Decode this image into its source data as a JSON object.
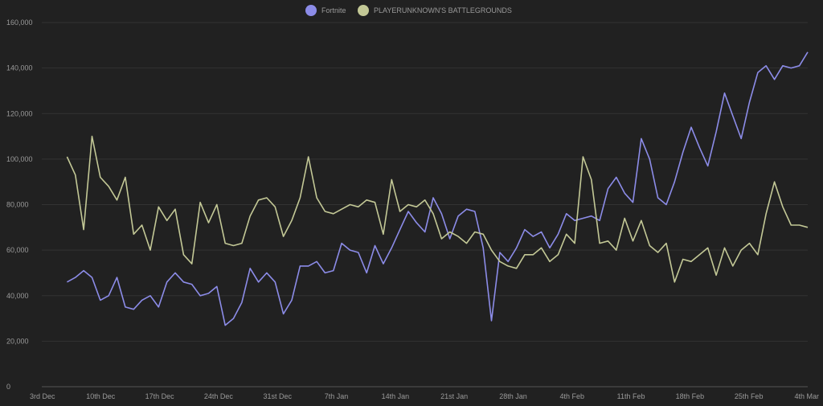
{
  "chart_data": {
    "type": "line",
    "title": "",
    "xlabel": "",
    "ylabel": "",
    "ylim": [
      0,
      160000
    ],
    "y_ticks": [
      0,
      20000,
      40000,
      60000,
      80000,
      100000,
      120000,
      140000,
      160000
    ],
    "y_tick_labels": [
      "0",
      "20,000",
      "40,000",
      "60,000",
      "80,000",
      "100,000",
      "120,000",
      "140,000",
      "160,000"
    ],
    "x_tick_labels": [
      "3rd Dec",
      "10th Dec",
      "17th Dec",
      "24th Dec",
      "31st Dec",
      "7th Jan",
      "14th Jan",
      "21st Jan",
      "28th Jan",
      "4th Feb",
      "11th Feb",
      "18th Feb",
      "25th Feb",
      "4th Mar"
    ],
    "x_range_days": [
      0,
      91
    ],
    "x_start_offset_days": 3,
    "grid": true,
    "legend_position": "top-center",
    "series": [
      {
        "name": "Fortnite",
        "color": "#8c8ce8",
        "values": [
          46000,
          48000,
          51000,
          48000,
          38000,
          40000,
          48000,
          35000,
          34000,
          38000,
          40000,
          35000,
          46000,
          50000,
          46000,
          45000,
          40000,
          41000,
          44000,
          27000,
          30000,
          37000,
          52000,
          46000,
          50000,
          46000,
          32000,
          38000,
          53000,
          53000,
          55000,
          50000,
          51000,
          63000,
          60000,
          59000,
          50000,
          62000,
          54000,
          61000,
          69000,
          77000,
          72000,
          68000,
          83000,
          76000,
          65000,
          75000,
          78000,
          77000,
          61000,
          29000,
          59000,
          55000,
          61000,
          69000,
          66000,
          68000,
          61000,
          67000,
          76000,
          73000,
          74000,
          75000,
          73000,
          87000,
          92000,
          85000,
          81000,
          109000,
          100000,
          83000,
          80000,
          90000,
          103000,
          114000,
          105000,
          97000,
          112000,
          129000,
          119000,
          109000,
          125000,
          138000,
          141000,
          135000,
          141000,
          140000,
          141000,
          147000
        ]
      },
      {
        "name": "PLAYERUNKNOWN'S BATTLEGROUNDS",
        "color": "#c3c896",
        "values": [
          101000,
          93000,
          69000,
          110000,
          92000,
          88000,
          82000,
          92000,
          67000,
          71000,
          60000,
          79000,
          73000,
          78000,
          58000,
          54000,
          81000,
          72000,
          80000,
          63000,
          62000,
          63000,
          75000,
          82000,
          83000,
          79000,
          66000,
          73000,
          83000,
          101000,
          83000,
          77000,
          76000,
          78000,
          80000,
          79000,
          82000,
          81000,
          67000,
          91000,
          77000,
          80000,
          79000,
          82000,
          76000,
          65000,
          68000,
          66000,
          63000,
          68000,
          67000,
          60000,
          55000,
          53000,
          52000,
          58000,
          58000,
          61000,
          55000,
          58000,
          67000,
          63000,
          101000,
          91000,
          63000,
          64000,
          60000,
          74000,
          64000,
          73000,
          62000,
          59000,
          63000,
          46000,
          56000,
          55000,
          58000,
          61000,
          49000,
          61000,
          53000,
          60000,
          63000,
          58000,
          76000,
          90000,
          79000,
          71000,
          71000,
          70000
        ]
      }
    ]
  }
}
